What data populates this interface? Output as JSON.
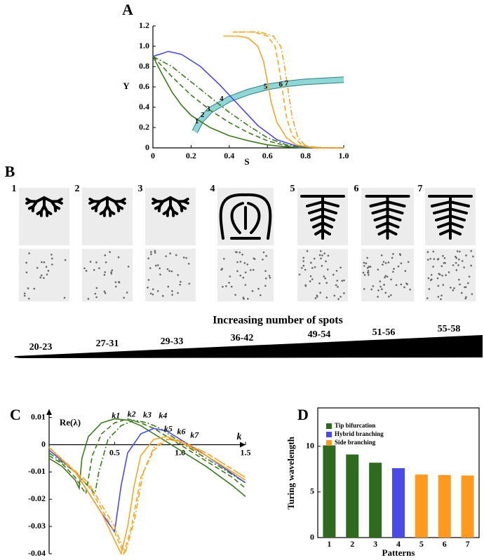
{
  "chart_data": [
    {
      "type": "line",
      "label": "A",
      "xlabel": "S",
      "ylabel": "Y",
      "xlim": [
        0,
        1
      ],
      "ylim": [
        0,
        1.2
      ],
      "xticks": [
        0,
        0.2,
        0.4,
        0.6,
        0.8,
        {
          "value": 1,
          "label": "1.0"
        }
      ],
      "yticks": [
        0,
        0.2,
        0.4,
        0.6,
        0.8,
        {
          "value": 1,
          "label": "1.0"
        },
        1.2
      ],
      "series": [
        {
          "color": "#8fd6d6",
          "style": "band",
          "x": [
            0.22,
            0.25,
            0.3,
            0.4,
            0.5,
            0.6,
            0.7,
            0.8,
            1.0
          ],
          "values": [
            0.16,
            0.27,
            0.37,
            0.48,
            0.55,
            0.6,
            0.63,
            0.65,
            0.67
          ]
        },
        {
          "color": "#3d7a1f",
          "style": "solid",
          "x": [
            0,
            0.05,
            0.1,
            0.15,
            0.2,
            0.3,
            0.4,
            0.5,
            0.6,
            0.7,
            0.8,
            1.0
          ],
          "values": [
            0.9,
            0.72,
            0.55,
            0.42,
            0.32,
            0.2,
            0.12,
            0.07,
            0.03,
            0.01,
            0,
            0
          ]
        },
        {
          "color": "#3d7a1f",
          "style": "dashed",
          "x": [
            0,
            0.1,
            0.2,
            0.3,
            0.4,
            0.5,
            0.6,
            0.7,
            0.8,
            1.0
          ],
          "values": [
            0.9,
            0.7,
            0.52,
            0.37,
            0.25,
            0.15,
            0.07,
            0.02,
            0,
            0
          ]
        },
        {
          "color": "#3d7a1f",
          "style": "dashdot",
          "x": [
            0,
            0.1,
            0.2,
            0.3,
            0.4,
            0.5,
            0.6,
            0.7,
            0.8,
            1.0
          ],
          "values": [
            0.9,
            0.8,
            0.65,
            0.5,
            0.35,
            0.22,
            0.1,
            0.03,
            0.005,
            0
          ]
        },
        {
          "color": "#4a4ae8",
          "style": "solid",
          "x": [
            0,
            0.05,
            0.08,
            0.15,
            0.25,
            0.35,
            0.45,
            0.55,
            0.65,
            0.75,
            0.85,
            1.0
          ],
          "values": [
            0.9,
            0.93,
            0.95,
            0.92,
            0.8,
            0.62,
            0.42,
            0.22,
            0.08,
            0.02,
            0,
            0
          ]
        },
        {
          "color": "#f5a623",
          "style": "solid",
          "x": [
            0.37,
            0.45,
            0.5,
            0.55,
            0.58,
            0.6,
            0.62,
            0.65,
            0.7,
            0.75,
            0.85,
            1.0
          ],
          "values": [
            1.1,
            1.1,
            1.08,
            1.0,
            0.85,
            0.65,
            0.45,
            0.25,
            0.1,
            0.03,
            0,
            0
          ]
        },
        {
          "color": "#f5a623",
          "style": "dashed",
          "x": [
            0.42,
            0.53,
            0.6,
            0.64,
            0.66,
            0.68,
            0.7,
            0.73,
            0.78,
            0.85,
            1.0
          ],
          "values": [
            1.14,
            1.14,
            1.1,
            1.0,
            0.8,
            0.55,
            0.3,
            0.12,
            0.03,
            0,
            0
          ]
        },
        {
          "color": "#f5a623",
          "style": "dashdot",
          "x": [
            0.45,
            0.56,
            0.63,
            0.67,
            0.69,
            0.71,
            0.73,
            0.76,
            0.8,
            0.88,
            1.0
          ],
          "values": [
            1.14,
            1.14,
            1.1,
            1.0,
            0.8,
            0.55,
            0.3,
            0.1,
            0.02,
            0,
            0
          ]
        }
      ],
      "annotations": [
        {
          "text": "1",
          "x": 0.23,
          "y": 0.26
        },
        {
          "text": "2",
          "x": 0.26,
          "y": 0.32
        },
        {
          "text": "3",
          "x": 0.29,
          "y": 0.38
        },
        {
          "text": "4",
          "x": 0.36,
          "y": 0.48
        },
        {
          "text": "5",
          "x": 0.59,
          "y": 0.6
        },
        {
          "text": "6",
          "x": 0.67,
          "y": 0.62
        },
        {
          "text": "7",
          "x": 0.7,
          "y": 0.63
        }
      ]
    },
    {
      "type": "line",
      "label": "C",
      "xlabel": "k",
      "ylabel": "Re(λ)",
      "xlim": [
        0,
        1.5
      ],
      "ylim": [
        -0.04,
        0.013
      ],
      "xticks": [
        0.5,
        {
          "value": 1,
          "label": "1.0"
        },
        1.5
      ],
      "yticks": [
        -0.04,
        -0.03,
        -0.02,
        -0.01,
        0,
        0.01
      ],
      "series": [
        {
          "color": "#3d7a1f",
          "style": "solid",
          "x": [
            0,
            0.1,
            0.2,
            0.23,
            0.25,
            0.3,
            0.4,
            0.5,
            0.6,
            0.7,
            0.8,
            0.9,
            1.0,
            1.2,
            1.4,
            1.5
          ],
          "values": [
            -0.005,
            -0.008,
            -0.013,
            -0.016,
            -0.005,
            0.003,
            0.008,
            0.0095,
            0.009,
            0.007,
            0.004,
            0.001,
            -0.002,
            -0.008,
            -0.015,
            -0.019
          ]
        },
        {
          "color": "#3d7a1f",
          "style": "dashed",
          "x": [
            0,
            0.1,
            0.2,
            0.28,
            0.33,
            0.4,
            0.5,
            0.6,
            0.7,
            0.8,
            0.9,
            1.0,
            1.2,
            1.4,
            1.5
          ],
          "values": [
            -0.004,
            -0.007,
            -0.012,
            -0.018,
            -0.004,
            0.004,
            0.008,
            0.0095,
            0.008,
            0.006,
            0.003,
            0,
            -0.006,
            -0.012,
            -0.016
          ]
        },
        {
          "color": "#3d7a1f",
          "style": "dashdot",
          "x": [
            0,
            0.2,
            0.35,
            0.38,
            0.45,
            0.55,
            0.65,
            0.75,
            0.85,
            1.0,
            1.2,
            1.5
          ],
          "values": [
            -0.003,
            -0.01,
            -0.018,
            -0.01,
            0.002,
            0.007,
            0.009,
            0.008,
            0.006,
            0.001,
            -0.005,
            -0.014
          ]
        },
        {
          "color": "#4a4ae8",
          "style": "solid",
          "x": [
            0,
            0.2,
            0.4,
            0.5,
            0.55,
            0.6,
            0.7,
            0.8,
            0.9,
            1.0,
            1.2,
            1.5
          ],
          "values": [
            -0.002,
            -0.01,
            -0.025,
            -0.032,
            -0.015,
            -0.003,
            0.004,
            0.006,
            0.005,
            0.002,
            -0.004,
            -0.014
          ]
        },
        {
          "color": "#f5a623",
          "style": "solid",
          "x": [
            0,
            0.2,
            0.4,
            0.5,
            0.55,
            0.6,
            0.65,
            0.7,
            0.8,
            0.9,
            1.0,
            1.2,
            1.5
          ],
          "values": [
            -0.001,
            -0.01,
            -0.025,
            -0.035,
            -0.04,
            -0.03,
            -0.015,
            -0.004,
            0.002,
            0.003,
            0.001,
            -0.004,
            -0.013
          ]
        },
        {
          "color": "#f5a623",
          "style": "dashed",
          "x": [
            0,
            0.3,
            0.5,
            0.57,
            0.63,
            0.7,
            0.8,
            0.9,
            1.0,
            1.2,
            1.5
          ],
          "values": [
            -0.001,
            -0.015,
            -0.032,
            -0.04,
            -0.03,
            -0.012,
            -0.002,
            0.002,
            0.001,
            -0.003,
            -0.012
          ]
        },
        {
          "color": "#f5a623",
          "style": "dashdot",
          "x": [
            0,
            0.3,
            0.5,
            0.58,
            0.65,
            0.72,
            0.8,
            0.9,
            1.0,
            1.2,
            1.5
          ],
          "values": [
            -0.001,
            -0.014,
            -0.03,
            -0.04,
            -0.028,
            -0.01,
            -0.001,
            0.002,
            0.0015,
            -0.003,
            -0.012
          ]
        }
      ],
      "annotations": [
        {
          "text": "k1",
          "x": 0.51,
          "y": 0.0105
        },
        {
          "text": "k2",
          "x": 0.63,
          "y": 0.011
        },
        {
          "text": "k3",
          "x": 0.75,
          "y": 0.0107
        },
        {
          "text": "k4",
          "x": 0.87,
          "y": 0.0105
        },
        {
          "text": "k5",
          "x": 0.91,
          "y": 0.0056
        },
        {
          "text": "k6",
          "x": 1.01,
          "y": 0.0046
        },
        {
          "text": "k7",
          "x": 1.11,
          "y": 0.0033
        }
      ]
    },
    {
      "type": "bar",
      "label": "D",
      "xlabel": "Patterns",
      "ylabel": "Turing wavelength",
      "categories": [
        "1",
        "2",
        "3",
        "4",
        "5",
        "6",
        "7"
      ],
      "ylim": [
        0,
        14.2
      ],
      "yticks": [
        0,
        5,
        10
      ],
      "legend": "upper left",
      "series": [
        {
          "name": "Tip bifurcation",
          "color": "#2e6b1e",
          "values": [
            10.1,
            9.1,
            8.2,
            null,
            null,
            null,
            null
          ]
        },
        {
          "name": "Hybrid branching",
          "color": "#4a4ae8",
          "values": [
            null,
            null,
            null,
            7.6,
            null,
            null,
            null
          ]
        },
        {
          "name": "Side branching",
          "color": "#ff9a1f",
          "values": [
            null,
            null,
            null,
            null,
            6.9,
            6.85,
            6.8
          ]
        }
      ]
    }
  ],
  "figure_b": {
    "label": "B",
    "pattern_numbers": [
      "1",
      "2",
      "3",
      "4",
      "5",
      "6",
      "7"
    ],
    "heading": "Increasing number of spots",
    "spot_ranges": [
      "20-23",
      "27-31",
      "29-33",
      "36-42",
      "49-54",
      "51-56",
      "55-58"
    ]
  }
}
